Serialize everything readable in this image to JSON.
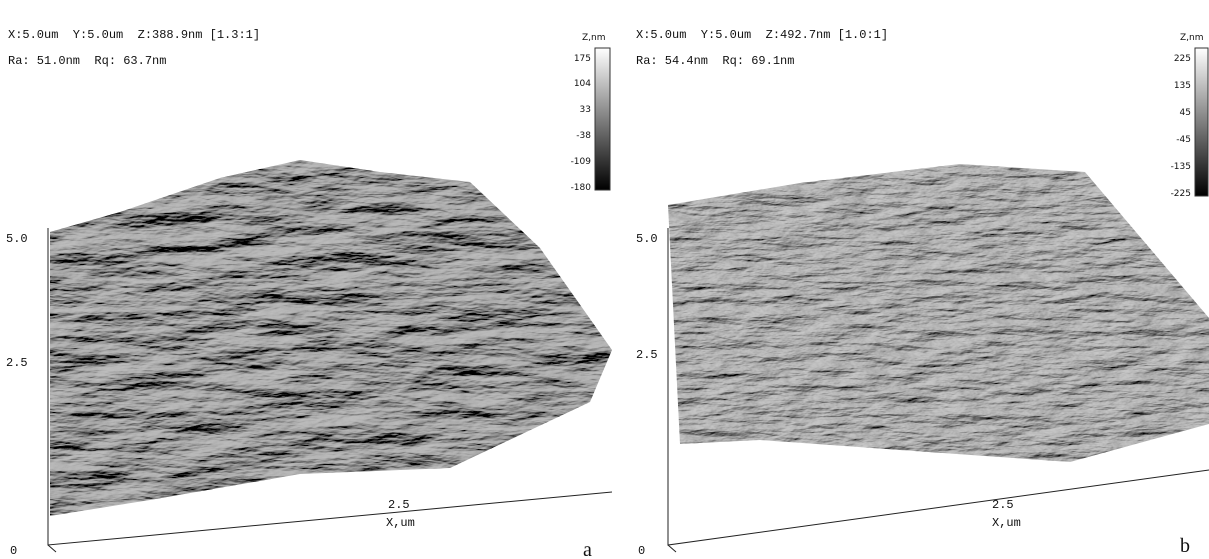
{
  "panels": [
    {
      "header": {
        "line1": "X:5.0um  Y:5.0um  Z:388.9nm [1.3:1]",
        "line2": "Ra: 51.0nm  Rq: 63.7nm"
      },
      "colorbar": {
        "title": "Z,nm",
        "ticks": [
          "175",
          "104",
          "33",
          "-38",
          "-109",
          "-180"
        ]
      },
      "axes": {
        "y_top": "5.0",
        "y_mid": "2.5",
        "x_mid": "2.5",
        "x_label": "X,um",
        "origin": "0"
      },
      "label": "a"
    },
    {
      "header": {
        "line1": "X:5.0um  Y:5.0um  Z:492.7nm [1.0:1]",
        "line2": "Ra: 54.4nm  Rq: 69.1nm"
      },
      "colorbar": {
        "title": "Z,nm",
        "ticks": [
          "225",
          "135",
          "45",
          "-45",
          "-135",
          "-225"
        ]
      },
      "axes": {
        "y_top": "5.0",
        "y_mid": "2.5",
        "x_mid": "2.5",
        "x_label": "X,um",
        "origin": "0"
      },
      "label": "b"
    }
  ]
}
